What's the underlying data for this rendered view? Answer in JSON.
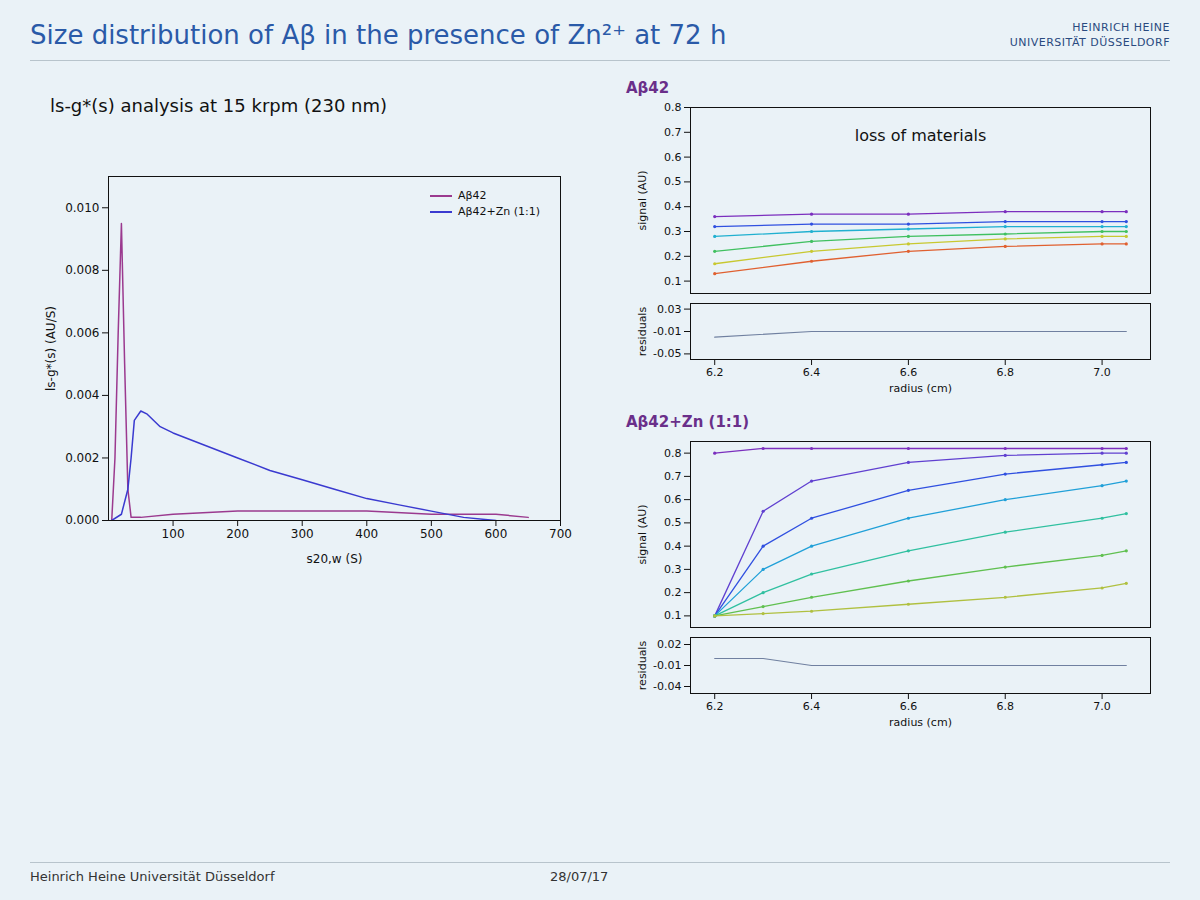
{
  "slide": {
    "title": "Size distribution of Aβ in the presence of Zn²⁺ at 72 h",
    "logo": [
      "HEINRICH HEINE",
      "UNIVERSITÄT DÜSSELDORF"
    ],
    "footer": "Heinrich Heine Universität Düsseldorf",
    "date": "28/07/17"
  },
  "chart_data": [
    {
      "type": "line",
      "title": "ls-g*(s) analysis at 15 krpm (230 nm)",
      "xlabel": "s20,w (S)",
      "ylabel": "ls-g*(s) (AU/S)",
      "xlim": [
        0,
        700
      ],
      "xticks": [
        100,
        200,
        300,
        400,
        500,
        600,
        700
      ],
      "ylim": [
        0,
        0.011
      ],
      "yticks": [
        {
          "value": 0,
          "label": "0.000"
        },
        {
          "value": 0.002,
          "label": "0.002"
        },
        {
          "value": 0.004,
          "label": "0.004"
        },
        {
          "value": 0.006,
          "label": "0.006"
        },
        {
          "value": 0.008,
          "label": "0.008"
        },
        {
          "value": 0.01,
          "label": "0.010"
        }
      ],
      "legend": "top-right",
      "series": [
        {
          "name": "Aβ42",
          "color": "#9b3a8f",
          "x": [
            5,
            10,
            15,
            20,
            25,
            30,
            35,
            50,
            100,
            200,
            300,
            400,
            500,
            600,
            650
          ],
          "values": [
            0,
            0.002,
            0.006,
            0.0095,
            0.005,
            0.001,
            0.0001,
            0.0001,
            0.0002,
            0.0003,
            0.0003,
            0.0003,
            0.0002,
            0.0002,
            0.0001
          ]
        },
        {
          "name": "Aβ42+Zn (1:1)",
          "color": "#3a3ad0",
          "x": [
            5,
            20,
            30,
            35,
            40,
            50,
            60,
            80,
            100,
            150,
            200,
            250,
            300,
            350,
            400,
            450,
            500,
            550,
            600
          ],
          "values": [
            0,
            0.0002,
            0.001,
            0.002,
            0.0032,
            0.0035,
            0.0034,
            0.003,
            0.0028,
            0.0024,
            0.002,
            0.0016,
            0.0013,
            0.001,
            0.0007,
            0.0005,
            0.0003,
            0.0001,
            0
          ]
        }
      ]
    },
    {
      "type": "line",
      "title": "Aβ42",
      "annotation": "loss of materials",
      "xlabel": "radius (cm)",
      "ylabel": "signal (AU)",
      "xlim": [
        6.15,
        7.1
      ],
      "xticks": [
        6.2,
        6.4,
        6.6,
        6.8,
        {
          "value": 7,
          "label": "7.0"
        }
      ],
      "ylim": [
        0.05,
        0.8
      ],
      "yticks": [
        0.1,
        0.2,
        0.3,
        0.4,
        0.5,
        0.6,
        0.7,
        0.8
      ],
      "x": [
        6.2,
        6.4,
        6.6,
        6.8,
        7.0,
        7.05
      ],
      "series": [
        {
          "color": "#7b2fbe",
          "values": [
            0.36,
            0.37,
            0.37,
            0.38,
            0.38,
            0.38
          ]
        },
        {
          "color": "#3050e0",
          "values": [
            0.32,
            0.33,
            0.33,
            0.34,
            0.34,
            0.34
          ]
        },
        {
          "color": "#20b0d0",
          "values": [
            0.28,
            0.3,
            0.31,
            0.32,
            0.32,
            0.32
          ]
        },
        {
          "color": "#40c060",
          "values": [
            0.22,
            0.26,
            0.28,
            0.29,
            0.3,
            0.3
          ]
        },
        {
          "color": "#c8c830",
          "values": [
            0.17,
            0.22,
            0.25,
            0.27,
            0.28,
            0.28
          ]
        },
        {
          "color": "#e06030",
          "values": [
            0.13,
            0.18,
            0.22,
            0.24,
            0.25,
            0.25
          ]
        }
      ],
      "residuals": {
        "ylabel": "residuals",
        "ylim": [
          -0.06,
          0.04
        ],
        "yticks": [
          0.03,
          -0.01,
          -0.05
        ],
        "series": [
          {
            "color": "#7080a0",
            "values": [
              -0.02,
              -0.01,
              -0.01,
              -0.01,
              -0.01,
              -0.01
            ]
          }
        ]
      }
    },
    {
      "type": "line",
      "title": "Aβ42+Zn (1:1)",
      "xlabel": "radius (cm)",
      "ylabel": "signal (AU)",
      "xlim": [
        6.15,
        7.1
      ],
      "xticks": [
        6.2,
        6.4,
        6.6,
        6.8,
        {
          "value": 7,
          "label": "7.0"
        }
      ],
      "ylim": [
        0.05,
        0.85
      ],
      "yticks": [
        0.1,
        0.2,
        0.3,
        0.4,
        0.5,
        0.6,
        0.7,
        0.8
      ],
      "x": [
        6.2,
        6.3,
        6.4,
        6.6,
        6.8,
        7.0,
        7.05
      ],
      "series": [
        {
          "color": "#7b2fbe",
          "values": [
            0.8,
            0.82,
            0.82,
            0.82,
            0.82,
            0.82,
            0.82
          ]
        },
        {
          "color": "#6040d0",
          "values": [
            0.1,
            0.55,
            0.68,
            0.76,
            0.79,
            0.8,
            0.8
          ]
        },
        {
          "color": "#3050e0",
          "values": [
            0.1,
            0.4,
            0.52,
            0.64,
            0.71,
            0.75,
            0.76
          ]
        },
        {
          "color": "#20a0d8",
          "values": [
            0.1,
            0.3,
            0.4,
            0.52,
            0.6,
            0.66,
            0.68
          ]
        },
        {
          "color": "#30c0a0",
          "values": [
            0.1,
            0.2,
            0.28,
            0.38,
            0.46,
            0.52,
            0.54
          ]
        },
        {
          "color": "#60c050",
          "values": [
            0.1,
            0.14,
            0.18,
            0.25,
            0.31,
            0.36,
            0.38
          ]
        },
        {
          "color": "#b0c040",
          "values": [
            0.1,
            0.11,
            0.12,
            0.15,
            0.18,
            0.22,
            0.24
          ]
        }
      ],
      "residuals": {
        "ylabel": "residuals",
        "ylim": [
          -0.05,
          0.03
        ],
        "yticks": [
          0.02,
          -0.01,
          -0.04
        ],
        "series": [
          {
            "color": "#7080a0",
            "values": [
              0,
              0,
              -0.01,
              -0.01,
              -0.01,
              -0.01,
              -0.01
            ]
          }
        ]
      }
    }
  ]
}
